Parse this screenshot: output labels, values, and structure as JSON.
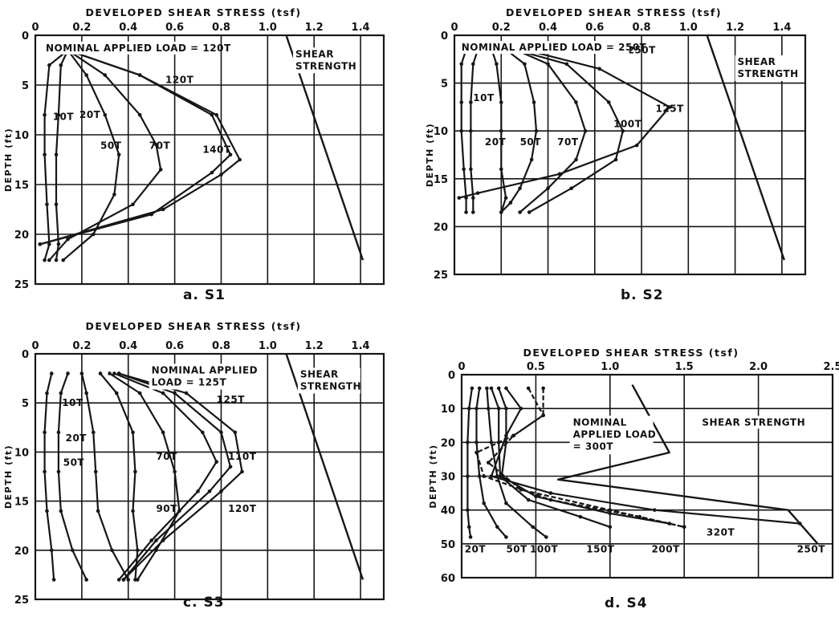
{
  "chart_data": [
    {
      "type": "line",
      "panel_label": "a. S1",
      "xlabel": "DEVELOPED SHEAR STRESS (tsf)",
      "ylabel": "DEPTH (ft)",
      "xlim": [
        0,
        1.5
      ],
      "ylim": [
        0,
        25
      ],
      "y_inverted": true,
      "grid": true,
      "xticks": [
        "0",
        "0.2",
        "0.4",
        "0.6",
        "0.8",
        "1.0",
        "1.2",
        "1.4"
      ],
      "yticks": [
        "0",
        "5",
        "10",
        "15",
        "20",
        "25"
      ],
      "annotations": [
        "NOMINAL APPLIED LOAD = 120T",
        "SHEAR STRENGTH"
      ],
      "series": [
        {
          "name": "10T",
          "x": [
            0.14,
            0.06,
            0.04,
            0.04,
            0.05,
            0.06,
            0.04
          ],
          "y": [
            1.5,
            3,
            8,
            12,
            17,
            21,
            22.6
          ]
        },
        {
          "name": "20T",
          "x": [
            0.14,
            0.11,
            0.1,
            0.09,
            0.09,
            0.1,
            0.09
          ],
          "y": [
            1.5,
            3,
            8,
            12,
            17,
            21,
            22.6
          ]
        },
        {
          "name": "50T",
          "x": [
            0.14,
            0.22,
            0.3,
            0.36,
            0.34,
            0.25,
            0.12
          ],
          "y": [
            1.5,
            4,
            8,
            12,
            16,
            20,
            22.6
          ]
        },
        {
          "name": "70T",
          "x": [
            0.14,
            0.3,
            0.45,
            0.52,
            0.54,
            0.42,
            0.14,
            0.06
          ],
          "y": [
            1.5,
            4,
            8,
            11,
            13.5,
            17,
            20.5,
            22.6
          ]
        },
        {
          "name": "140T",
          "x": [
            0.14,
            0.45,
            0.78,
            0.88,
            0.8,
            0.55,
            0.02
          ],
          "y": [
            1.5,
            4,
            8,
            12.5,
            14,
            17.5,
            21
          ]
        },
        {
          "name": "120T",
          "x": [
            0.14,
            0.45,
            0.76,
            0.84,
            0.76,
            0.5,
            0.02
          ],
          "y": [
            1.5,
            4,
            8,
            12,
            13.8,
            18,
            21
          ]
        },
        {
          "name": "SHEAR STRENGTH",
          "x": [
            1.08,
            1.41
          ],
          "y": [
            0,
            22.6
          ]
        }
      ]
    },
    {
      "type": "line",
      "panel_label": "b. S2",
      "xlabel": "DEVELOPED SHEAR STRESS (tsf)",
      "ylabel": "DEPTH (ft)",
      "xlim": [
        0,
        1.5
      ],
      "ylim": [
        0,
        25
      ],
      "y_inverted": true,
      "grid": true,
      "xticks": [
        "0",
        "0.2",
        "0.4",
        "0.6",
        "0.8",
        "1.0",
        "1.2",
        "1.4"
      ],
      "yticks": [
        "0",
        "5",
        "10",
        "15",
        "20",
        "25"
      ],
      "annotations": [
        "NOMINAL APPLIED LOAD = 250T",
        "SHEAR STRENGTH"
      ],
      "series": [
        {
          "name": "10T",
          "x": [
            0.05,
            0.03,
            0.03,
            0.03,
            0.04,
            0.05,
            0.05
          ],
          "y": [
            1.5,
            3,
            7,
            10,
            14,
            17,
            18.5
          ]
        },
        {
          "name": "20T",
          "x": [
            0.1,
            0.08,
            0.07,
            0.07,
            0.07,
            0.08,
            0.08
          ],
          "y": [
            1.5,
            3,
            7,
            10,
            14,
            17,
            18.5
          ]
        },
        {
          "name": "50T",
          "x": [
            0.16,
            0.18,
            0.2,
            0.2,
            0.2,
            0.22,
            0.2
          ],
          "y": [
            1.5,
            3,
            7,
            10,
            14,
            17,
            18.5
          ]
        },
        {
          "name": "70T",
          "x": [
            0.22,
            0.3,
            0.34,
            0.35,
            0.33,
            0.28,
            0.24,
            0.2
          ],
          "y": [
            1.5,
            3,
            7,
            10,
            13,
            16,
            17.5,
            18.5
          ]
        },
        {
          "name": "100T",
          "x": [
            0.26,
            0.4,
            0.52,
            0.56,
            0.52,
            0.4,
            0.28
          ],
          "y": [
            1.5,
            3,
            7,
            10,
            13,
            16,
            18.5
          ]
        },
        {
          "name": "125T",
          "x": [
            0.26,
            0.48,
            0.66,
            0.72,
            0.69,
            0.5,
            0.32
          ],
          "y": [
            1.5,
            3,
            7,
            10,
            13,
            16,
            18.5
          ]
        },
        {
          "name": "250T",
          "x": [
            0.3,
            0.62,
            0.92,
            0.78,
            0.45,
            0.1,
            0.02
          ],
          "y": [
            1.5,
            3.5,
            7.5,
            11.5,
            14.5,
            16.5,
            17
          ]
        },
        {
          "name": "SHEAR STRENGTH",
          "x": [
            1.08,
            1.41
          ],
          "y": [
            0,
            23.5
          ]
        }
      ]
    },
    {
      "type": "line",
      "panel_label": "c. S3",
      "xlabel": "DEVELOPED SHEAR STRESS (tsf)",
      "ylabel": "DEPTH (ft)",
      "xlim": [
        0,
        1.5
      ],
      "ylim": [
        0,
        25
      ],
      "y_inverted": true,
      "grid": true,
      "xticks": [
        "0",
        "0.2",
        "0.4",
        "0.6",
        "0.8",
        "1.0",
        "1.2",
        "1.4"
      ],
      "yticks": [
        "0",
        "5",
        "10",
        "15",
        "20",
        "25"
      ],
      "annotations": [
        "NOMINAL APPLIED LOAD = 125T",
        "SHEAR STRENGTH"
      ],
      "series": [
        {
          "name": "10T",
          "x": [
            0.07,
            0.05,
            0.04,
            0.04,
            0.05,
            0.07,
            0.08
          ],
          "y": [
            2,
            4,
            8,
            12,
            16,
            20,
            23
          ]
        },
        {
          "name": "20T",
          "x": [
            0.14,
            0.11,
            0.1,
            0.1,
            0.11,
            0.16,
            0.22
          ],
          "y": [
            2,
            4,
            8,
            12,
            16,
            20,
            23
          ]
        },
        {
          "name": "50T",
          "x": [
            0.2,
            0.22,
            0.25,
            0.26,
            0.27,
            0.33,
            0.4
          ],
          "y": [
            2,
            4,
            8,
            12,
            16,
            20,
            23
          ]
        },
        {
          "name": "70T",
          "x": [
            0.28,
            0.35,
            0.42,
            0.43,
            0.42,
            0.44,
            0.43
          ],
          "y": [
            2,
            4,
            8,
            12,
            16,
            20,
            23
          ]
        },
        {
          "name": "90T",
          "x": [
            0.32,
            0.45,
            0.55,
            0.6,
            0.62,
            0.52,
            0.44
          ],
          "y": [
            2,
            4,
            8,
            12,
            16,
            20,
            23
          ]
        },
        {
          "name": "110T",
          "x": [
            0.34,
            0.55,
            0.72,
            0.78,
            0.7,
            0.5,
            0.36
          ],
          "y": [
            2,
            4,
            8,
            11,
            14,
            19,
            23
          ]
        },
        {
          "name": "120T",
          "x": [
            0.36,
            0.6,
            0.8,
            0.84,
            0.75,
            0.52,
            0.38
          ],
          "y": [
            2,
            4,
            8,
            11.5,
            14,
            19,
            23
          ]
        },
        {
          "name": "125T",
          "x": [
            0.36,
            0.65,
            0.86,
            0.89,
            0.8,
            0.55,
            0.38
          ],
          "y": [
            2,
            4,
            8,
            12,
            14,
            19,
            23
          ]
        },
        {
          "name": "SHEAR STRENGTH",
          "x": [
            1.08,
            1.41
          ],
          "y": [
            0,
            23
          ]
        }
      ]
    },
    {
      "type": "line",
      "panel_label": "d. S4",
      "xlabel": "DEVELOPED SHEAR STRESS (tsf)",
      "ylabel": "DEPTH (ft)",
      "xlim": [
        0,
        2.5
      ],
      "ylim": [
        0,
        60
      ],
      "y_inverted": true,
      "grid": true,
      "xticks": [
        "0",
        "0.5",
        "1.0",
        "1.5",
        "2.0",
        "2.5"
      ],
      "yticks": [
        "0",
        "10",
        "20",
        "30",
        "40",
        "50",
        "60"
      ],
      "annotations": [
        "NOMINAL APPLIED LOAD = 300T",
        "SHEAR STRENGTH"
      ],
      "series": [
        {
          "name": "20T",
          "x": [
            0.07,
            0.05,
            0.04,
            0.04,
            0.04,
            0.05,
            0.06
          ],
          "y": [
            4,
            10,
            20,
            30,
            40,
            45,
            48
          ]
        },
        {
          "name": "50T",
          "x": [
            0.12,
            0.1,
            0.1,
            0.12,
            0.15,
            0.24,
            0.3
          ],
          "y": [
            4,
            10,
            20,
            30,
            38,
            45,
            48
          ]
        },
        {
          "name": "100T",
          "x": [
            0.17,
            0.18,
            0.2,
            0.24,
            0.3,
            0.48,
            0.57
          ],
          "y": [
            4,
            10,
            20,
            30,
            38,
            45,
            48
          ]
        },
        {
          "name": "150T",
          "x": [
            0.2,
            0.25,
            0.25,
            0.26,
            0.45,
            0.8,
            1.0
          ],
          "y": [
            4,
            10,
            20,
            30,
            37,
            42,
            45
          ]
        },
        {
          "name": "200T",
          "x": [
            0.25,
            0.3,
            0.3,
            0.27,
            0.5,
            1.0,
            1.4
          ],
          "y": [
            4,
            10,
            20,
            30,
            36,
            41,
            44
          ]
        },
        {
          "name": "250T",
          "x": [
            0.3,
            0.4,
            0.3,
            0.2,
            0.6,
            1.3,
            2.28
          ],
          "y": [
            4,
            10,
            18,
            30,
            35,
            40,
            44
          ]
        },
        {
          "name": "300T",
          "x": [
            0.45,
            0.55,
            0.35,
            0.1,
            0.15,
            0.6,
            1.2,
            1.5
          ],
          "y": [
            4,
            12,
            18,
            23,
            30,
            37,
            42,
            45
          ]
        },
        {
          "name": "320T",
          "x": [
            0.55,
            0.55,
            0.35,
            0.18,
            0.4,
            1.0,
            1.5
          ],
          "y": [
            4,
            12,
            18,
            26,
            34,
            40,
            45
          ]
        },
        {
          "name": "SHEAR STRENGTH",
          "x": [
            1.15,
            1.4,
            0.65,
            2.2,
            2.4
          ],
          "y": [
            3,
            23,
            31,
            40,
            50
          ]
        }
      ]
    }
  ]
}
